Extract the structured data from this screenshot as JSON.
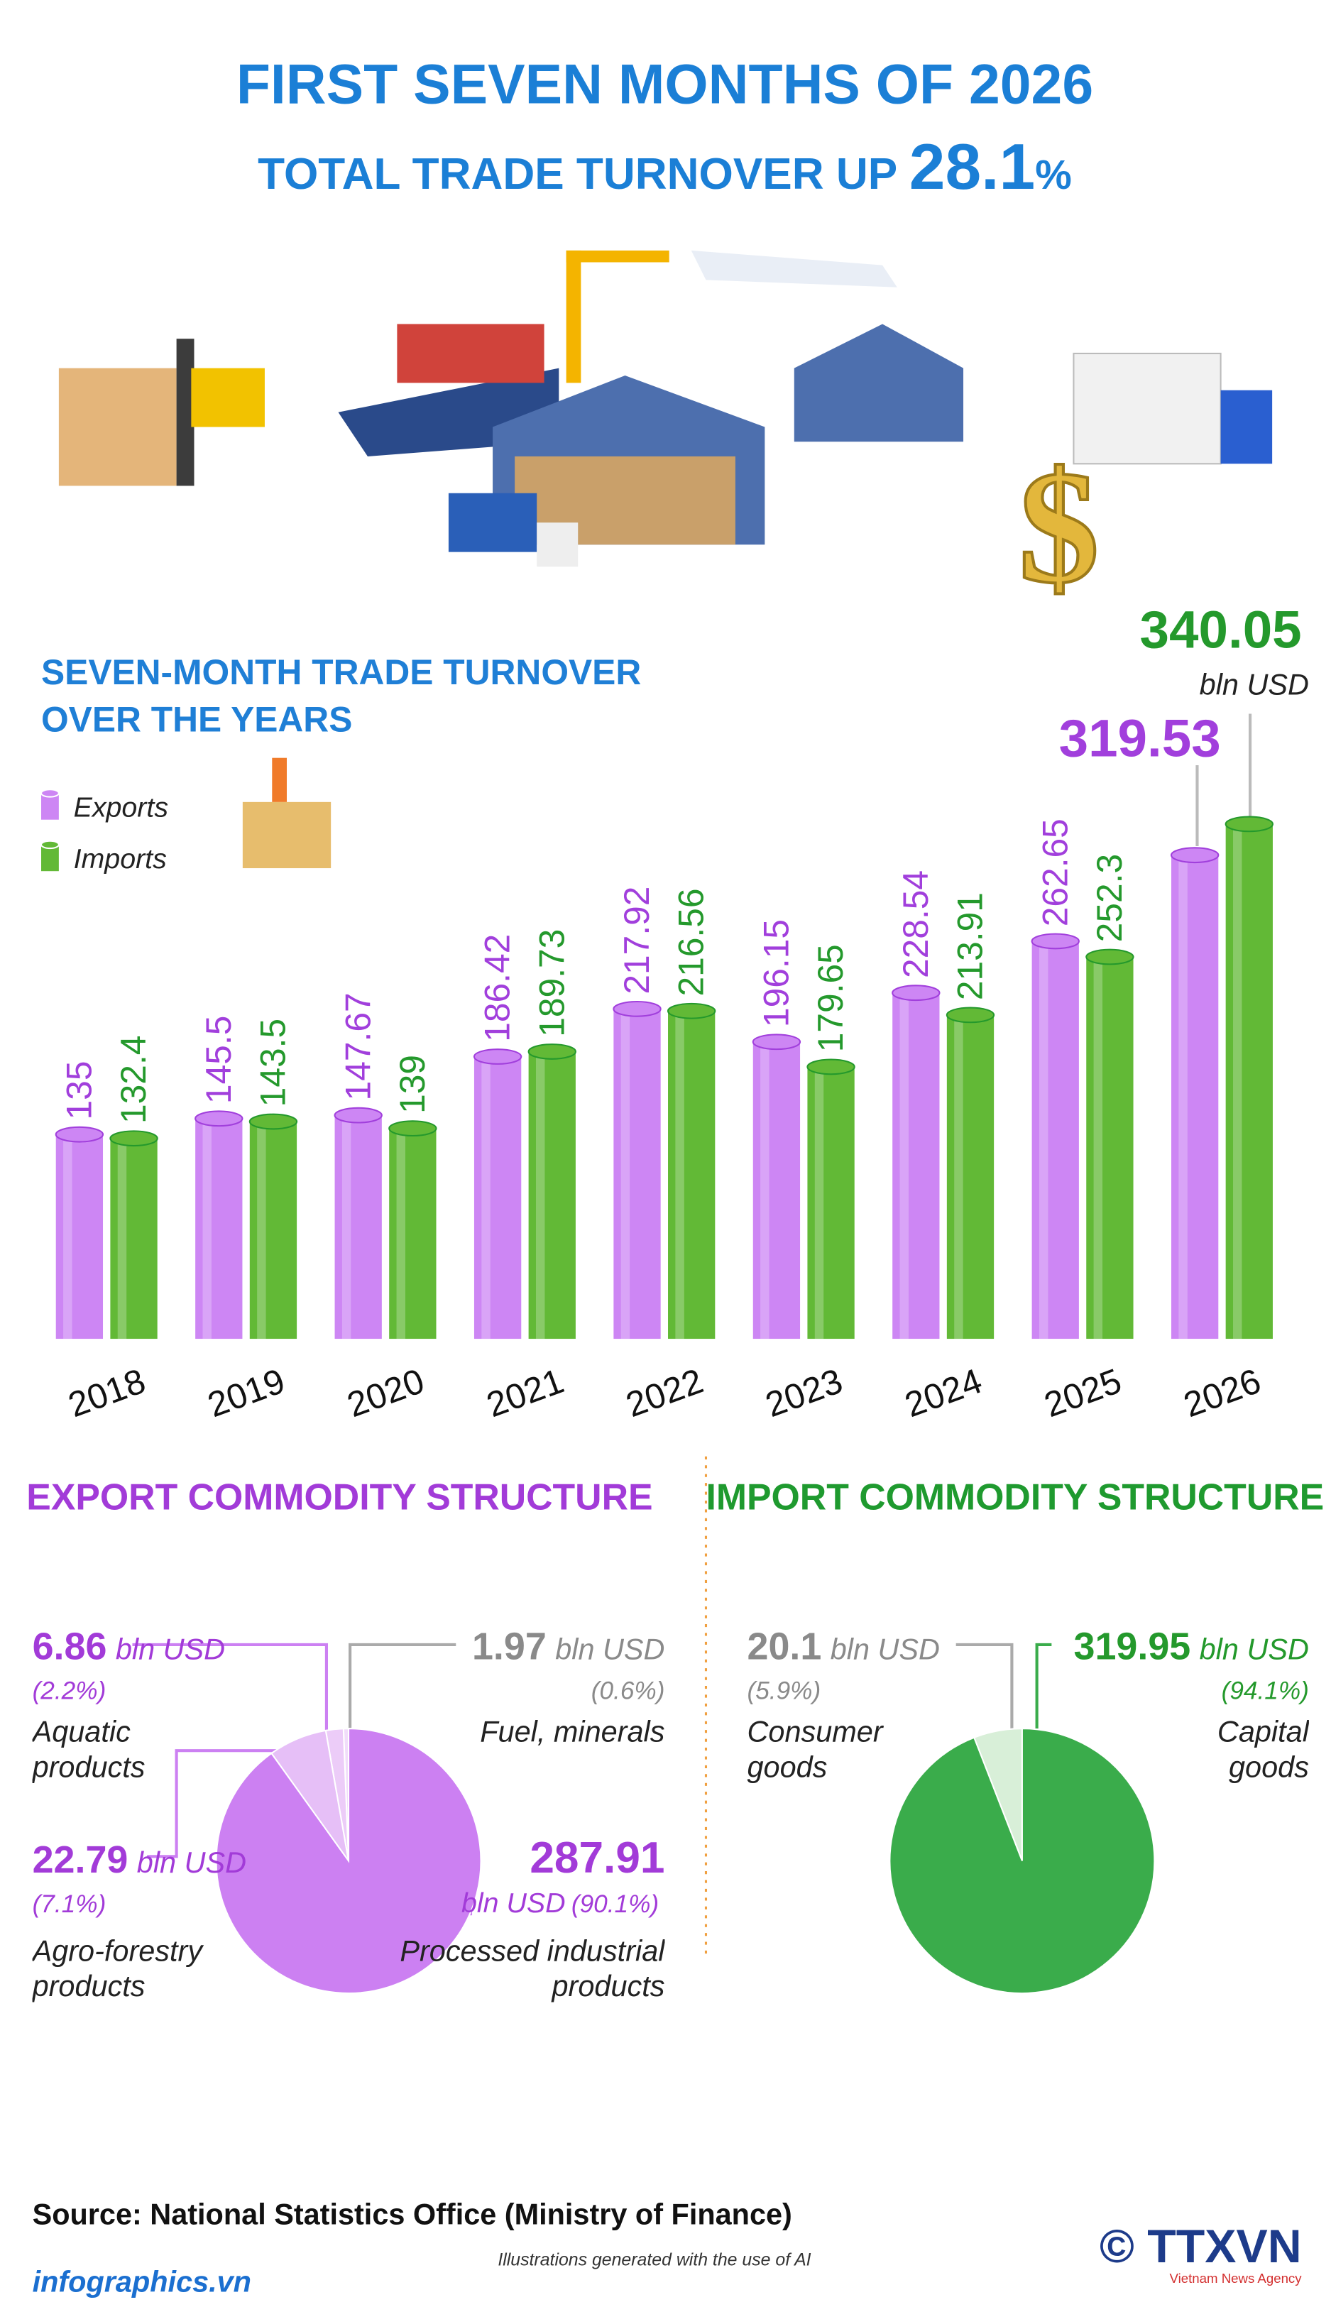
{
  "header": {
    "title": "FIRST SEVEN MONTHS OF 2026",
    "subtitle": "TOTAL TRADE TURNOVER UP",
    "highlight": "28.1",
    "highlight_unit": "%"
  },
  "chart_data": [
    {
      "type": "bar",
      "title": [
        "SEVEN-MONTH TRADE TURNOVER",
        "OVER THE YEARS"
      ],
      "categories": [
        "2018",
        "2019",
        "2020",
        "2021",
        "2022",
        "2023",
        "2024",
        "2025",
        "2026"
      ],
      "series": [
        {
          "name": "Exports",
          "color": "#cd86f4",
          "label_color": "#a13fdc",
          "values": [
            135,
            145.5,
            147.67,
            186.42,
            217.92,
            196.15,
            228.54,
            262.65,
            319.53
          ]
        },
        {
          "name": "Imports",
          "color": "#62b936",
          "label_color": "#24992c",
          "values": [
            132.4,
            143.5,
            139,
            189.73,
            216.56,
            179.65,
            213.91,
            252.3,
            340.05
          ]
        }
      ],
      "unit": "bln USD"
    },
    {
      "type": "pie",
      "title": "EXPORT COMMODITY STRUCTURE",
      "unit": "bln USD",
      "categories": [
        "Fuel, minerals",
        "Aquatic products",
        "Agro-forestry products",
        "Processed industrial products"
      ],
      "values": [
        1.97,
        6.86,
        22.79,
        287.91
      ],
      "shares": [
        0.6,
        2.2,
        7.1,
        90.1
      ],
      "share_labels": [
        "(0.6%)",
        "(2.2%)",
        "(7.1%)",
        "(90.1%)"
      ],
      "colors": [
        "#f1dcfa",
        "#ecccf8",
        "#e6bff7",
        "#cc80f2"
      ]
    },
    {
      "type": "pie",
      "title": "IMPORT COMMODITY STRUCTURE",
      "unit": "bln USD",
      "categories": [
        "Consumer goods",
        "Capital goods"
      ],
      "values": [
        20.1,
        319.95
      ],
      "shares": [
        5.9,
        94.1
      ],
      "share_labels": [
        "(5.9%)",
        "(94.1%)"
      ],
      "colors": [
        "#d8efd8",
        "#3aac4b"
      ]
    }
  ],
  "footer": {
    "source": "Source: National Statistics Office (Ministry of Finance)",
    "note": "Illustrations generated with the use of AI",
    "site": "infographics.vn",
    "brand": "© TTXVN",
    "brand_sub": "Vietnam News Agency"
  }
}
